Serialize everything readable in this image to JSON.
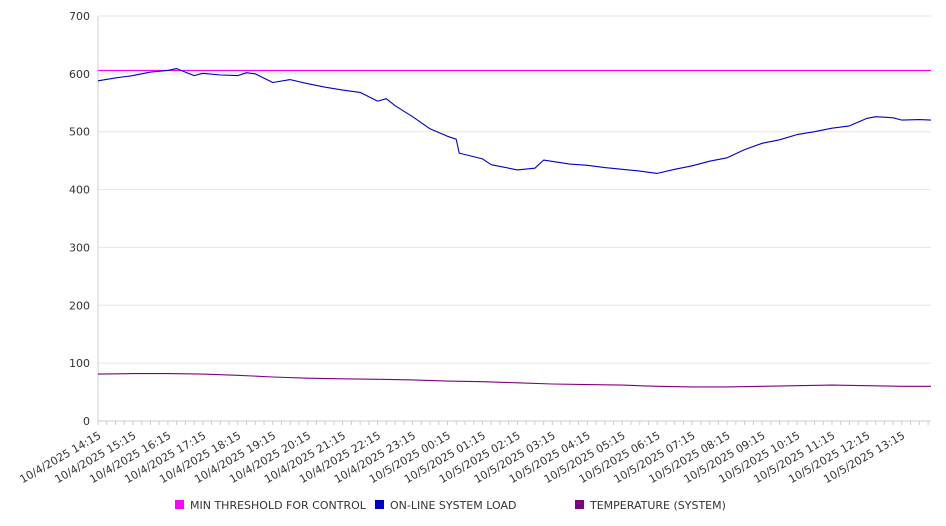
{
  "chart_data": {
    "type": "line",
    "title": "",
    "xlabel": "",
    "ylabel": "",
    "ylim": [
      0,
      700
    ],
    "yticks": [
      0,
      100,
      200,
      300,
      400,
      500,
      600,
      700
    ],
    "grid": true,
    "legend_position": "bottom",
    "x_tick_labels": [
      "10/4/2025 14:15",
      "10/4/2025 15:15",
      "10/4/2025 16:15",
      "10/4/2025 17:15",
      "10/4/2025 18:15",
      "10/4/2025 19:15",
      "10/4/2025 20:15",
      "10/4/2025 21:15",
      "10/4/2025 22:15",
      "10/4/2025 23:15",
      "10/5/2025 00:15",
      "10/5/2025 01:15",
      "10/5/2025 02:15",
      "10/5/2025 03:15",
      "10/5/2025 04:15",
      "10/5/2025 05:15",
      "10/5/2025 06:15",
      "10/5/2025 07:15",
      "10/5/2025 08:15",
      "10/5/2025 09:15",
      "10/5/2025 10:15",
      "10/5/2025 11:15",
      "10/5/2025 12:15",
      "10/5/2025 13:15"
    ],
    "x_range": [
      "10/4/2025 14:15",
      "10/5/2025 14:05"
    ],
    "series": [
      {
        "name": "MIN THRESHOLD FOR CONTROL",
        "color": "#ff00ff",
        "points": [
          [
            "10/4/2025 14:15",
            606
          ],
          [
            "10/5/2025 14:05",
            606
          ]
        ]
      },
      {
        "name": "ON-LINE SYSTEM LOAD",
        "color": "#0000cc",
        "points": [
          [
            "10/4/2025 14:15",
            588
          ],
          [
            "10/4/2025 14:45",
            593
          ],
          [
            "10/4/2025 15:15",
            597
          ],
          [
            "10/4/2025 15:45",
            603
          ],
          [
            "10/4/2025 16:15",
            606
          ],
          [
            "10/4/2025 16:30",
            609
          ],
          [
            "10/4/2025 17:00",
            597
          ],
          [
            "10/4/2025 17:15",
            601
          ],
          [
            "10/4/2025 17:45",
            598
          ],
          [
            "10/4/2025 18:15",
            597
          ],
          [
            "10/4/2025 18:30",
            602
          ],
          [
            "10/4/2025 18:45",
            600
          ],
          [
            "10/4/2025 19:15",
            585
          ],
          [
            "10/4/2025 19:45",
            590
          ],
          [
            "10/4/2025 20:15",
            583
          ],
          [
            "10/4/2025 20:45",
            577
          ],
          [
            "10/4/2025 21:15",
            572
          ],
          [
            "10/4/2025 21:45",
            568
          ],
          [
            "10/4/2025 22:15",
            553
          ],
          [
            "10/4/2025 22:30",
            557
          ],
          [
            "10/4/2025 22:45",
            545
          ],
          [
            "10/4/2025 23:15",
            526
          ],
          [
            "10/4/2025 23:45",
            505
          ],
          [
            "10/5/2025 00:15",
            492
          ],
          [
            "10/5/2025 00:30",
            487
          ],
          [
            "10/5/2025 00:35",
            463
          ],
          [
            "10/5/2025 01:15",
            453
          ],
          [
            "10/5/2025 01:30",
            443
          ],
          [
            "10/5/2025 02:15",
            434
          ],
          [
            "10/5/2025 02:45",
            437
          ],
          [
            "10/5/2025 03:00",
            451
          ],
          [
            "10/5/2025 03:45",
            444
          ],
          [
            "10/5/2025 04:15",
            442
          ],
          [
            "10/5/2025 04:45",
            438
          ],
          [
            "10/5/2025 05:15",
            435
          ],
          [
            "10/5/2025 05:45",
            432
          ],
          [
            "10/5/2025 06:15",
            428
          ],
          [
            "10/5/2025 06:45",
            435
          ],
          [
            "10/5/2025 07:15",
            441
          ],
          [
            "10/5/2025 07:45",
            449
          ],
          [
            "10/5/2025 08:15",
            455
          ],
          [
            "10/5/2025 08:45",
            469
          ],
          [
            "10/5/2025 09:15",
            480
          ],
          [
            "10/5/2025 09:45",
            486
          ],
          [
            "10/5/2025 10:15",
            495
          ],
          [
            "10/5/2025 10:45",
            500
          ],
          [
            "10/5/2025 11:15",
            506
          ],
          [
            "10/5/2025 11:45",
            510
          ],
          [
            "10/5/2025 12:15",
            523
          ],
          [
            "10/5/2025 12:30",
            526
          ],
          [
            "10/5/2025 13:00",
            524
          ],
          [
            "10/5/2025 13:15",
            520
          ],
          [
            "10/5/2025 13:45",
            521
          ],
          [
            "10/5/2025 14:05",
            520
          ]
        ]
      },
      {
        "name": "TEMPERATURE (SYSTEM)",
        "color": "#800080",
        "points": [
          [
            "10/4/2025 14:15",
            81
          ],
          [
            "10/4/2025 15:15",
            82
          ],
          [
            "10/4/2025 16:15",
            82
          ],
          [
            "10/4/2025 17:15",
            81
          ],
          [
            "10/4/2025 18:15",
            79
          ],
          [
            "10/4/2025 19:15",
            76
          ],
          [
            "10/4/2025 20:15",
            74
          ],
          [
            "10/4/2025 21:15",
            73
          ],
          [
            "10/4/2025 22:15",
            72
          ],
          [
            "10/4/2025 23:15",
            71
          ],
          [
            "10/5/2025 00:15",
            69
          ],
          [
            "10/5/2025 01:15",
            68
          ],
          [
            "10/5/2025 02:15",
            66
          ],
          [
            "10/5/2025 03:15",
            64
          ],
          [
            "10/5/2025 04:15",
            63
          ],
          [
            "10/5/2025 05:15",
            62
          ],
          [
            "10/5/2025 06:15",
            60
          ],
          [
            "10/5/2025 07:15",
            59
          ],
          [
            "10/5/2025 08:15",
            59
          ],
          [
            "10/5/2025 09:15",
            60
          ],
          [
            "10/5/2025 10:15",
            61
          ],
          [
            "10/5/2025 11:15",
            62
          ],
          [
            "10/5/2025 12:15",
            61
          ],
          [
            "10/5/2025 13:15",
            60
          ],
          [
            "10/5/2025 14:05",
            60
          ]
        ]
      }
    ]
  }
}
